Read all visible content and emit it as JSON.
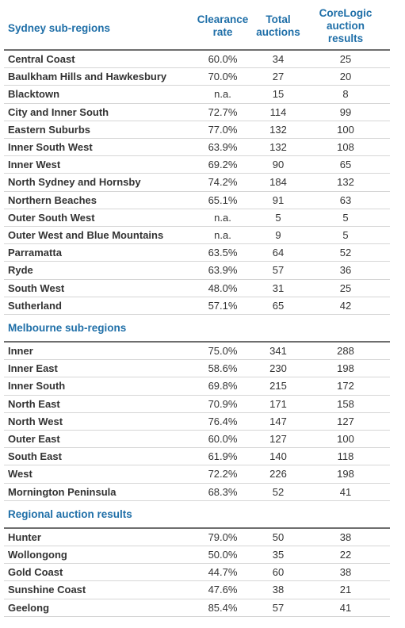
{
  "columns": [
    "Clearance rate",
    "Total auctions",
    "CoreLogic auction results"
  ],
  "sections": [
    {
      "title": "Sydney sub-regions",
      "rows": [
        [
          "Central Coast",
          "60.0%",
          "34",
          "25"
        ],
        [
          "Baulkham Hills and Hawkesbury",
          "70.0%",
          "27",
          "20"
        ],
        [
          "Blacktown",
          "n.a.",
          "15",
          "8"
        ],
        [
          "City and Inner South",
          "72.7%",
          "114",
          "99"
        ],
        [
          "Eastern Suburbs",
          "77.0%",
          "132",
          "100"
        ],
        [
          "Inner South West",
          "63.9%",
          "132",
          "108"
        ],
        [
          "Inner West",
          "69.2%",
          "90",
          "65"
        ],
        [
          "North Sydney and Hornsby",
          "74.2%",
          "184",
          "132"
        ],
        [
          "Northern Beaches",
          "65.1%",
          "91",
          "63"
        ],
        [
          "Outer South West",
          "n.a.",
          "5",
          "5"
        ],
        [
          "Outer West and Blue Mountains",
          "n.a.",
          "9",
          "5"
        ],
        [
          "Parramatta",
          "63.5%",
          "64",
          "52"
        ],
        [
          "Ryde",
          "63.9%",
          "57",
          "36"
        ],
        [
          "South West",
          "48.0%",
          "31",
          "25"
        ],
        [
          "Sutherland",
          "57.1%",
          "65",
          "42"
        ]
      ]
    },
    {
      "title": "Melbourne sub-regions",
      "rows": [
        [
          "Inner",
          "75.0%",
          "341",
          "288"
        ],
        [
          "Inner East",
          "58.6%",
          "230",
          "198"
        ],
        [
          "Inner South",
          "69.8%",
          "215",
          "172"
        ],
        [
          "North East",
          "70.9%",
          "171",
          "158"
        ],
        [
          "North West",
          "76.4%",
          "147",
          "127"
        ],
        [
          "Outer East",
          "60.0%",
          "127",
          "100"
        ],
        [
          "South East",
          "61.9%",
          "140",
          "118"
        ],
        [
          "West",
          "72.2%",
          "226",
          "198"
        ],
        [
          "Mornington Peninsula",
          "68.3%",
          "52",
          "41"
        ]
      ]
    },
    {
      "title": "Regional auction results",
      "rows": [
        [
          "Hunter",
          "79.0%",
          "50",
          "38"
        ],
        [
          "Wollongong",
          "50.0%",
          "35",
          "22"
        ],
        [
          "Gold Coast",
          "44.7%",
          "60",
          "38"
        ],
        [
          "Sunshine Coast",
          "47.6%",
          "38",
          "21"
        ],
        [
          "Geelong",
          "85.4%",
          "57",
          "41"
        ]
      ]
    }
  ]
}
